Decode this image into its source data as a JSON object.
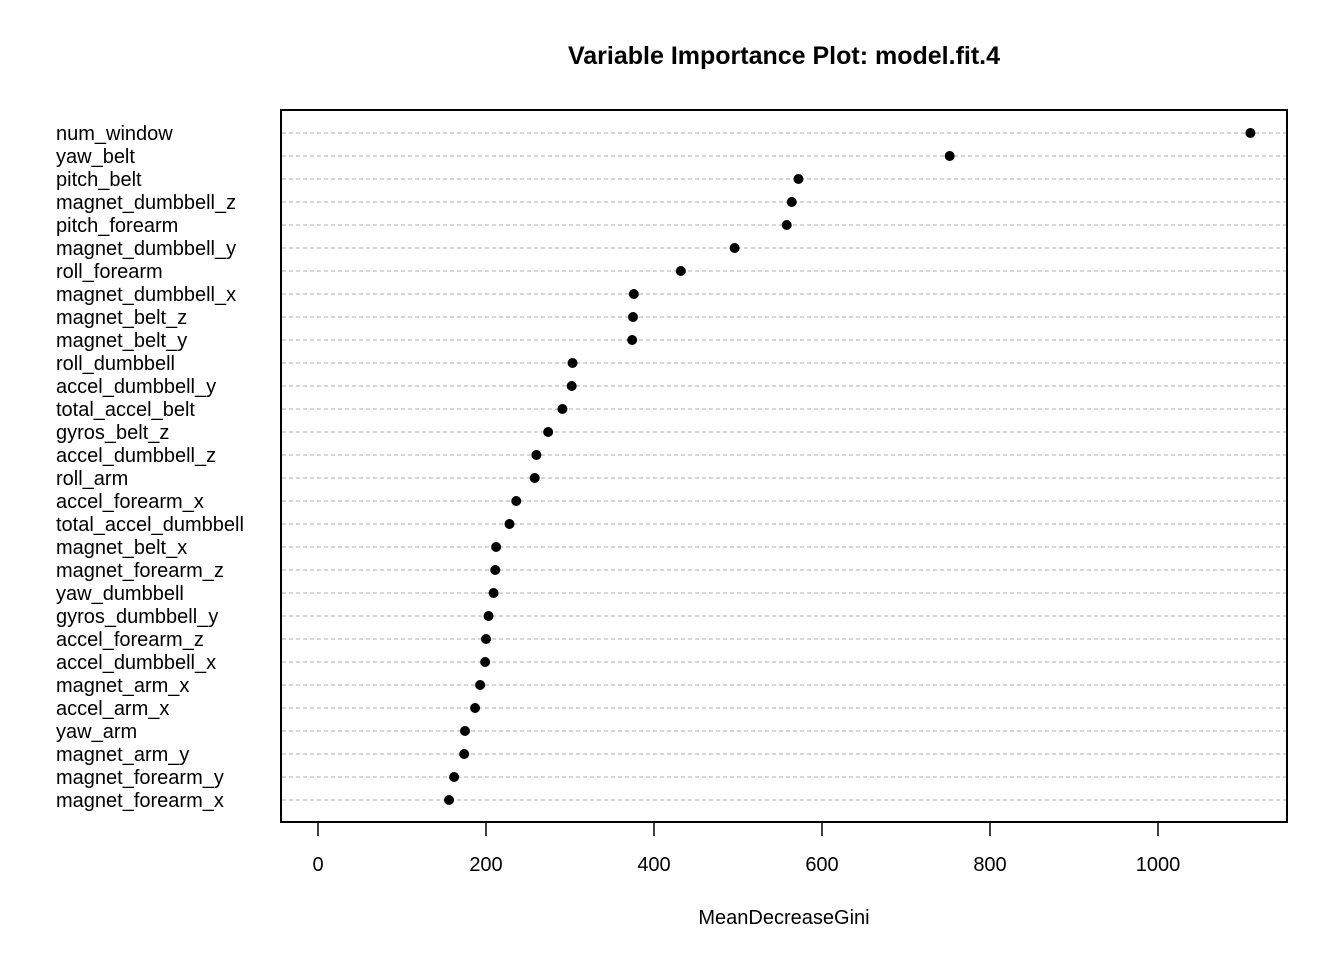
{
  "chart_data": {
    "type": "scatter",
    "subtype": "dotchart",
    "title": "Variable Importance Plot: model.fit.4",
    "xlabel": "MeanDecreaseGini",
    "ylabel": "",
    "xlim": [
      -20,
      1150
    ],
    "xticks": [
      0,
      200,
      400,
      600,
      800,
      1000
    ],
    "grid": "horizontal dashed lines per variable",
    "point_color": "#000000",
    "grid_color": "#bebebe",
    "categories": [
      "num_window",
      "yaw_belt",
      "pitch_belt",
      "magnet_dumbbell_z",
      "pitch_forearm",
      "magnet_dumbbell_y",
      "roll_forearm",
      "magnet_dumbbell_x",
      "magnet_belt_z",
      "magnet_belt_y",
      "roll_dumbbell",
      "accel_dumbbell_y",
      "total_accel_belt",
      "gyros_belt_z",
      "accel_dumbbell_z",
      "roll_arm",
      "accel_forearm_x",
      "total_accel_dumbbell",
      "magnet_belt_x",
      "magnet_forearm_z",
      "yaw_dumbbell",
      "gyros_dumbbell_y",
      "accel_forearm_z",
      "accel_dumbbell_x",
      "magnet_arm_x",
      "accel_arm_x",
      "yaw_arm",
      "magnet_arm_y",
      "magnet_forearm_y",
      "magnet_forearm_x"
    ],
    "values": [
      1110,
      752,
      572,
      564,
      558,
      496,
      432,
      376,
      375,
      374,
      303,
      302,
      291,
      274,
      260,
      258,
      236,
      228,
      212,
      211,
      209,
      203,
      200,
      199,
      193,
      187,
      175,
      174,
      162,
      156
    ]
  }
}
